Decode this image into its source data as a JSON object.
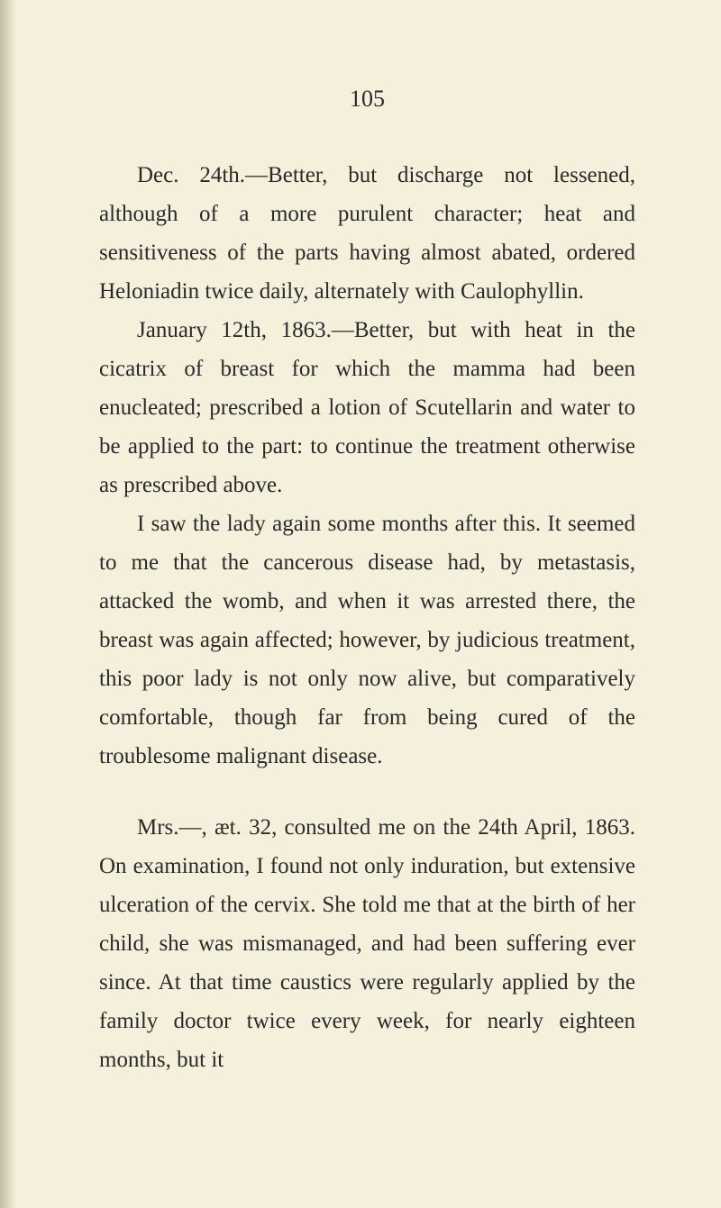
{
  "page": {
    "number": "105",
    "background_color": "#f4f0dc",
    "text_color": "#2a2a2a",
    "font_family": "Georgia, Times New Roman, serif",
    "body_fontsize": 25,
    "line_height": 1.72,
    "paragraphs": [
      {
        "text": "Dec. 24th.—Better, but discharge not lessened, although of a more purulent character; heat and sensitiveness of the parts having almost abated, ordered Heloniadin twice daily, alternately with Caulophyllin.",
        "indent": true
      },
      {
        "text": "January 12th, 1863.—Better, but with heat in the cicatrix of breast for which the mamma had been enucleated; prescribed a lotion of Scutellarin and water to be applied to the part: to continue the treatment otherwise as prescribed above.",
        "indent": true
      },
      {
        "text": "I saw the lady again some months after this. It seemed to me that the cancerous disease had, by metastasis, attacked the womb, and when it was arrested there, the breast was again affected; however, by judicious treatment, this poor lady is not only now alive, but comparatively comfortable, though far from being cured of the troublesome malignant disease.",
        "indent": true
      },
      {
        "text": "Mrs.—, æt. 32, consulted me on the 24th April, 1863. On examination, I found not only induration, but extensive ulceration of the cervix. She told me that at the birth of her child, she was mismanaged, and had been suffering ever since. At that time caustics were regularly applied by the family doctor twice every week, for nearly eighteen months, but it",
        "indent": true
      }
    ]
  }
}
